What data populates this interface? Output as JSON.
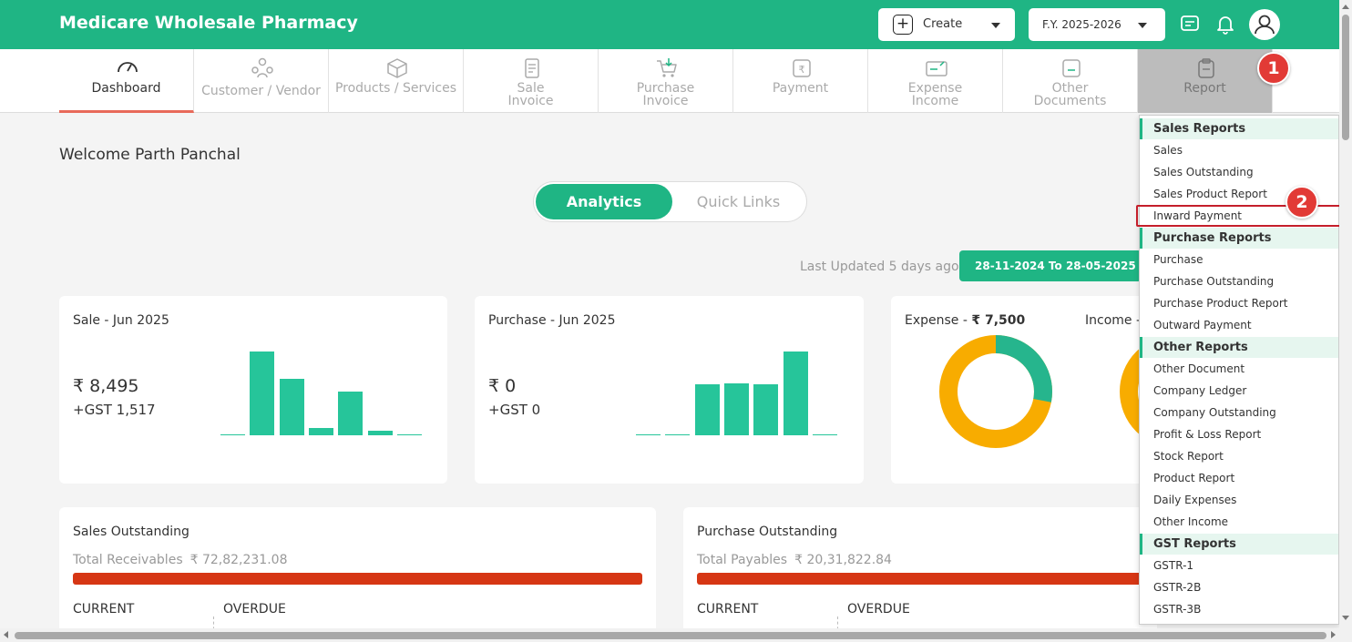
{
  "header": {
    "brand": "Medicare Wholesale Pharmacy",
    "create_label": "Create",
    "fy_label": "F.Y. 2025-2026"
  },
  "nav": {
    "dashboard": "Dashboard",
    "customer_vendor": "Customer / Vendor",
    "products_services": "Products / Services",
    "sale_invoice_1": "Sale",
    "sale_invoice_2": "Invoice",
    "purchase_invoice_1": "Purchase",
    "purchase_invoice_2": "Invoice",
    "payment": "Payment",
    "expense_income_1": "Expense",
    "expense_income_2": "Income",
    "other_documents_1": "Other",
    "other_documents_2": "Documents",
    "report": "Report"
  },
  "steps": {
    "one": "1",
    "two": "2"
  },
  "dashboard": {
    "welcome": "Welcome Parth Panchal",
    "tab_analytics": "Analytics",
    "tab_quick_links": "Quick Links",
    "last_updated": "Last Updated 5 days ago",
    "date_range": "28-11-2024 To 28-05-2025"
  },
  "sale_card": {
    "title": "Sale - Jun 2025",
    "amount": "₹ 8,495",
    "gst": "+GST 1,517",
    "bars": [
      1,
      90,
      61,
      8,
      47,
      5,
      1
    ]
  },
  "purchase_card": {
    "title": "Purchase - Jun 2025",
    "amount": "₹ 0",
    "gst": "+GST 0",
    "bars": [
      1,
      1,
      52,
      53,
      52,
      86,
      1
    ]
  },
  "expense_card": {
    "expense_label": "Expense - ",
    "expense_value": "₹ 7,500",
    "income_label": "Income -",
    "donut_primary_fraction": 0.28,
    "colors": {
      "primary": "#26b58d",
      "secondary": "#f8ac00"
    }
  },
  "sales_outstanding": {
    "title": "Sales Outstanding",
    "total_label": "Total Receivables",
    "total_value": "₹ 72,82,231.08",
    "current": "CURRENT",
    "overdue": "OVERDUE"
  },
  "purchase_outstanding": {
    "title": "Purchase Outstanding",
    "total_label": "Total Payables",
    "total_value": "₹ 20,31,822.84",
    "current": "CURRENT",
    "overdue": "OVERDUE"
  },
  "report_menu": {
    "sales_reports": "Sales Reports",
    "sales_items": [
      "Sales",
      "Sales Outstanding",
      "Sales Product Report",
      "Inward Payment"
    ],
    "purchase_reports": "Purchase Reports",
    "purchase_items": [
      "Purchase",
      "Purchase Outstanding",
      "Purchase Product Report",
      "Outward Payment"
    ],
    "other_reports": "Other Reports",
    "other_items": [
      "Other Document",
      "Company Ledger",
      "Company Outstanding",
      "Profit & Loss Report",
      "Stock Report",
      "Product Report",
      "Daily Expenses",
      "Other Income"
    ],
    "gst_reports": "GST Reports",
    "gst_items": [
      "GSTR-1",
      "GSTR-2B",
      "GSTR-3B"
    ]
  }
}
